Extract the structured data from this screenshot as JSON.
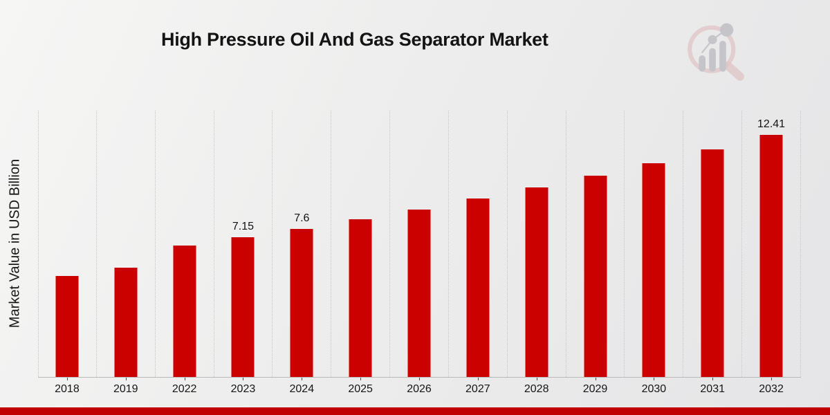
{
  "header": {
    "title": "High Pressure Oil And Gas Separator Market"
  },
  "branding": {
    "logo_icon": "magnifier-bar-chart-watermark-logo",
    "logo_circle_color": "#d9a6a6",
    "logo_bars_color": "#a9a9af"
  },
  "chart_data": {
    "type": "bar",
    "title": "High Pressure Oil And Gas Separator Market",
    "categories": [
      "2018",
      "2019",
      "2022",
      "2023",
      "2024",
      "2025",
      "2026",
      "2027",
      "2028",
      "2029",
      "2030",
      "2031",
      "2032"
    ],
    "values": [
      5.18,
      5.6,
      6.72,
      7.15,
      7.6,
      8.08,
      8.59,
      9.13,
      9.71,
      10.32,
      10.97,
      11.67,
      12.41
    ],
    "data_labels": [
      "",
      "",
      "",
      "7.15",
      "7.6",
      "",
      "",
      "",
      "",
      "",
      "",
      "",
      "12.41"
    ],
    "xlabel": "",
    "ylabel": "Market Value in USD Billion",
    "ylim": [
      0,
      13.65
    ],
    "grid": "vertical-only",
    "legend": "none",
    "bar_color": "#cb0100",
    "gridline_color": "#c6c6c6",
    "axis_color": "#b9b9b9",
    "text_color": "#141414"
  },
  "footer": {
    "accent_strip_color": "#c10001"
  }
}
